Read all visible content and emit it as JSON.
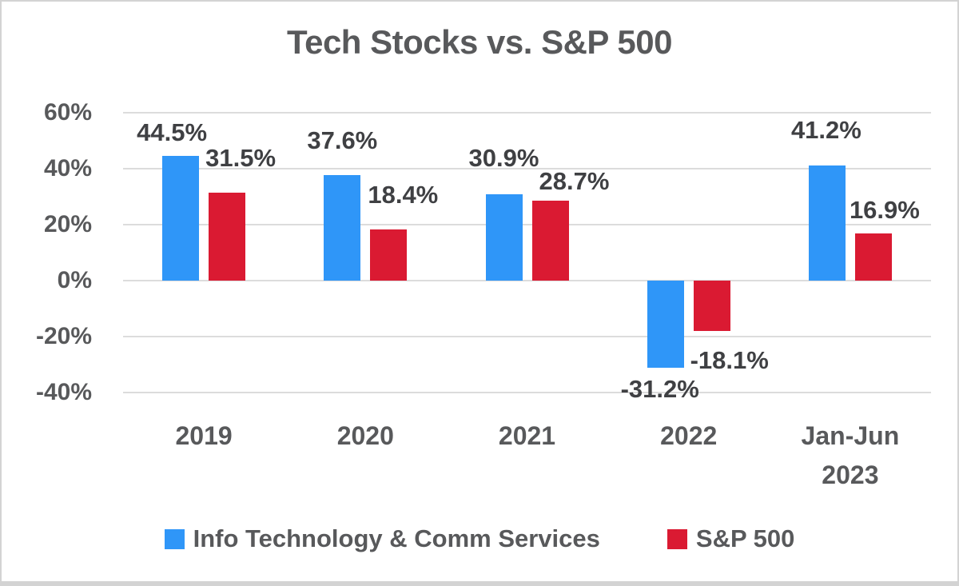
{
  "chart_data": {
    "type": "bar",
    "title": "Tech Stocks vs. S&P 500",
    "categories": [
      "2019",
      "2020",
      "2021",
      "2022",
      "Jan-Jun\n2023"
    ],
    "series": [
      {
        "name": "Info Technology & Comm Services",
        "color": "#2f96f8",
        "values": [
          44.5,
          37.6,
          30.9,
          -31.2,
          41.2
        ],
        "label_dx": [
          -11,
          0,
          0,
          -7,
          -1
        ],
        "label_gap": [
          13,
          27,
          29,
          10,
          28
        ]
      },
      {
        "name": "S&P 500",
        "color": "#da1a32",
        "values": [
          31.5,
          18.4,
          28.7,
          -18.1,
          16.9
        ],
        "label_dx": [
          17,
          18,
          30,
          22,
          14
        ],
        "label_gap": [
          27,
          27,
          8,
          20,
          13
        ]
      }
    ],
    "value_suffix": "%",
    "y_ticks": [
      {
        "label": "60%",
        "value": 60
      },
      {
        "label": "40%",
        "value": 40
      },
      {
        "label": "20%",
        "value": 20
      },
      {
        "label": "0%",
        "value": 0
      },
      {
        "label": "-20%",
        "value": -20
      },
      {
        "label": "-40%",
        "value": -40
      }
    ],
    "ylim": [
      -40,
      60
    ],
    "grid": true,
    "legend_position": "bottom",
    "colors": {
      "title_text": "#58595b",
      "axis_text": "#58595b",
      "data_label_text": "#3f4043",
      "gridline": "#dcdcdc"
    }
  }
}
